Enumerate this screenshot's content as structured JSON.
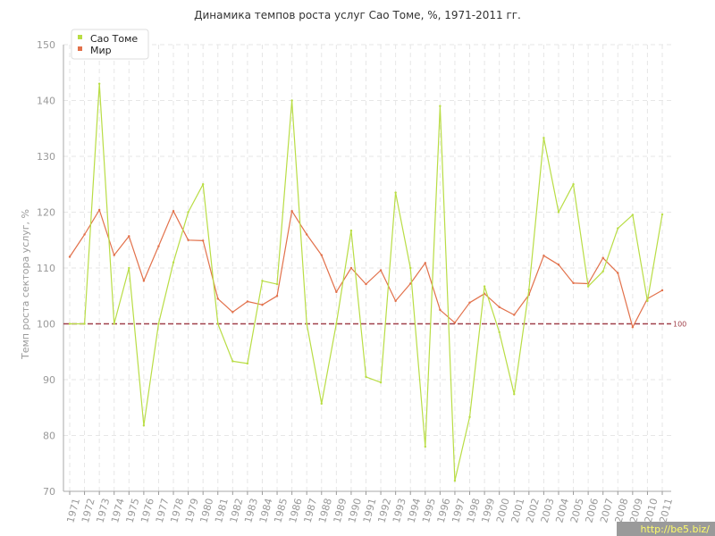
{
  "chart_data": {
    "type": "line",
    "title": "Динамика темпов роста услуг Сао Томе, %, 1971-2011 гг.",
    "ylabel": "Темп роста сектора услуг, %",
    "xlabel": "",
    "ylim": [
      70,
      150
    ],
    "yticks": [
      70,
      80,
      90,
      100,
      110,
      120,
      130,
      140,
      150
    ],
    "grid": true,
    "legend_position": "top-left",
    "categories": [
      "1971",
      "1972",
      "1973",
      "1974",
      "1975",
      "1976",
      "1977",
      "1978",
      "1979",
      "1980",
      "1981",
      "1982",
      "1983",
      "1984",
      "1985",
      "1986",
      "1987",
      "1988",
      "1989",
      "1990",
      "1991",
      "1992",
      "1993",
      "1994",
      "1995",
      "1996",
      "1997",
      "1998",
      "1999",
      "2000",
      "2001",
      "2002",
      "2003",
      "2004",
      "2005",
      "2006",
      "2007",
      "2008",
      "2009",
      "2010",
      "2011"
    ],
    "series": [
      {
        "name": "Сао Томе",
        "color": "#b9dd45",
        "values": [
          100.0,
          100.0,
          143.0,
          100.0,
          110.0,
          81.8,
          100.0,
          111.0,
          120.0,
          125.0,
          100.0,
          93.3,
          92.9,
          107.7,
          107.1,
          140.0,
          100.0,
          85.7,
          100.0,
          116.7,
          90.5,
          89.5,
          123.5,
          110.0,
          78.0,
          139.0,
          71.9,
          83.3,
          106.7,
          98.5,
          87.4,
          106.1,
          133.3,
          120.0,
          125.0,
          106.7,
          109.4,
          117.1,
          119.5,
          104.1,
          119.6
        ]
      },
      {
        "name": "Мир",
        "color": "#e2714b",
        "values": [
          112.0,
          116.0,
          120.4,
          112.3,
          115.7,
          107.7,
          113.9,
          120.2,
          115.0,
          114.9,
          104.5,
          102.1,
          104.0,
          103.4,
          105.0,
          120.2,
          116.0,
          112.3,
          105.7,
          110.0,
          107.1,
          109.6,
          104.1,
          107.2,
          110.9,
          102.5,
          100.2,
          103.8,
          105.4,
          103.0,
          101.6,
          105.2,
          112.2,
          110.6,
          107.3,
          107.2,
          111.8,
          109.1,
          99.4,
          104.5,
          106.0
        ]
      }
    ],
    "reference_line": {
      "value": 100,
      "label": "100",
      "color": "#a0404a"
    }
  },
  "watermark": "http://be5.biz/"
}
